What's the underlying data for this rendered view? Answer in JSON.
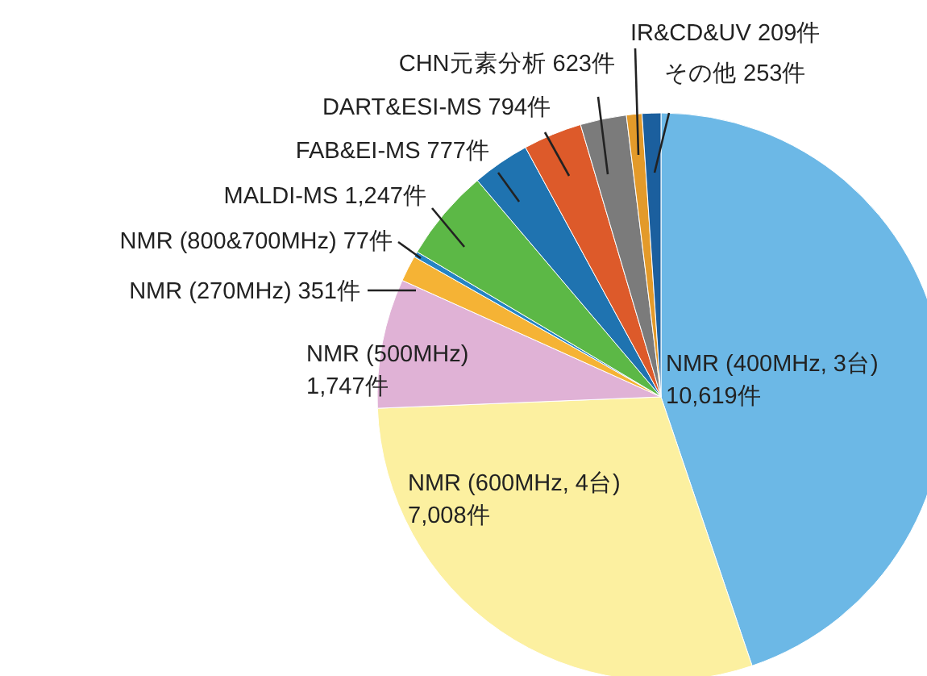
{
  "chart_data": {
    "type": "pie",
    "categories": [
      "NMR (400MHz, 3台)",
      "NMR (600MHz, 4台)",
      "NMR (500MHz)",
      "NMR (270MHz)",
      "NMR (800&700MHz)",
      "MALDI-MS",
      "FAB&EI-MS",
      "DART&ESI-MS",
      "CHN元素分析",
      "IR&CD&UV",
      "その他"
    ],
    "values": [
      10619,
      7008,
      1747,
      351,
      77,
      1247,
      777,
      794,
      623,
      209,
      253
    ],
    "value_labels": [
      "10,619件",
      "7,008件",
      "1,747件",
      "351件",
      "77件",
      "1,247件",
      "777件",
      "794件",
      "623件",
      "209件",
      "253件"
    ],
    "colors": [
      "#6cb8e6",
      "#fcf0a0",
      "#e0b2d6",
      "#f5b335",
      "#2584c4",
      "#5cb846",
      "#1f73b0",
      "#dd5a2a",
      "#7b7b7b",
      "#e39a2a",
      "#1b5f9e"
    ]
  }
}
